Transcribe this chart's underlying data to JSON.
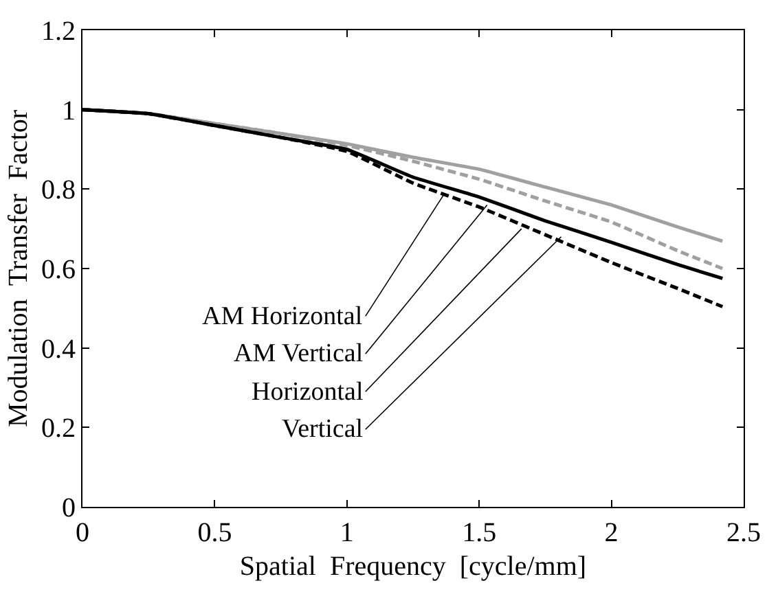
{
  "chart_data": {
    "type": "line",
    "xlabel": "Spatial  Frequency  [cycle/mm]",
    "ylabel": "Modulation  Transfer  Factor",
    "x": [
      0,
      0.25,
      0.5,
      0.75,
      1,
      1.25,
      1.5,
      1.75,
      2,
      2.25,
      2.42
    ],
    "series": [
      {
        "color": "#a0a0a0",
        "line_style": "solid",
        "values": [
          1.0,
          0.99,
          0.965,
          0.94,
          0.914,
          0.88,
          0.85,
          0.805,
          0.76,
          0.705,
          0.669
        ]
      },
      {
        "color": "#a0a0a0",
        "line_style": "dashed",
        "values": [
          1.0,
          0.99,
          0.965,
          0.94,
          0.91,
          0.87,
          0.825,
          0.77,
          0.717,
          0.645,
          0.6
        ]
      },
      {
        "color": "#000000",
        "line_style": "solid",
        "values": [
          1.0,
          0.99,
          0.96,
          0.93,
          0.9,
          0.83,
          0.78,
          0.72,
          0.666,
          0.61,
          0.575
        ]
      },
      {
        "color": "#000000",
        "line_style": "dashed",
        "values": [
          1.0,
          0.99,
          0.96,
          0.93,
          0.895,
          0.815,
          0.755,
          0.685,
          0.615,
          0.55,
          0.504
        ]
      }
    ],
    "annotations": [
      {
        "text": "AM Horizontal",
        "x": 1.37,
        "y": 0.79
      },
      {
        "text": "AM Vertical",
        "x": 1.53,
        "y": 0.76
      },
      {
        "text": "Horizontal",
        "x": 1.66,
        "y": 0.7
      },
      {
        "text": "Vertical",
        "x": 1.81,
        "y": 0.68
      }
    ],
    "xlim": [
      0,
      2.5
    ],
    "xticks": [
      0,
      0.5,
      1,
      1.5,
      2,
      2.5
    ],
    "ylim": [
      0,
      1.2
    ],
    "yticks": [
      0,
      0.2,
      0.4,
      0.6,
      0.8,
      1,
      1.2
    ]
  }
}
